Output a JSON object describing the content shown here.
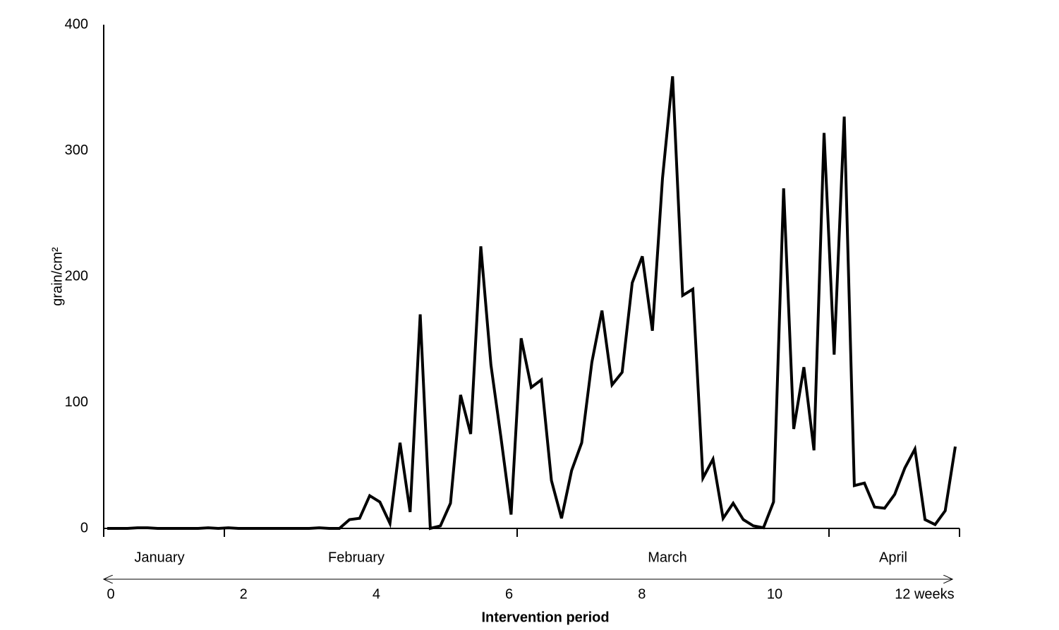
{
  "chart_data": {
    "type": "line",
    "color": "#000000",
    "ylabel": "grain/cm²",
    "xlabel": "Intervention period",
    "ylim": [
      0,
      400
    ],
    "yticks": [
      0,
      100,
      200,
      300,
      400
    ],
    "month_labels": [
      "January",
      "February",
      "March",
      "April"
    ],
    "week_ticks": [
      0,
      2,
      4,
      6,
      8,
      10,
      {
        "value": 12,
        "label": "12 weeks"
      }
    ],
    "values": [
      0,
      0,
      0,
      0.5,
      0.5,
      0,
      0,
      0,
      0,
      0,
      0.5,
      0,
      0.5,
      0,
      0,
      0,
      0,
      0,
      0,
      0,
      0,
      0.5,
      0,
      0,
      7,
      8,
      26,
      21,
      4,
      68,
      13,
      170,
      0,
      2,
      20,
      106,
      75,
      224,
      130,
      72,
      11,
      151,
      112,
      118,
      38,
      8,
      46,
      68,
      132,
      173,
      114,
      124,
      195,
      216,
      157,
      278,
      359,
      185,
      190,
      40,
      55,
      8,
      20,
      7,
      2,
      0.5,
      21,
      270,
      79,
      128,
      62,
      314,
      138,
      327,
      34,
      36,
      17,
      16,
      27,
      48,
      63,
      7,
      3,
      14,
      65
    ]
  }
}
